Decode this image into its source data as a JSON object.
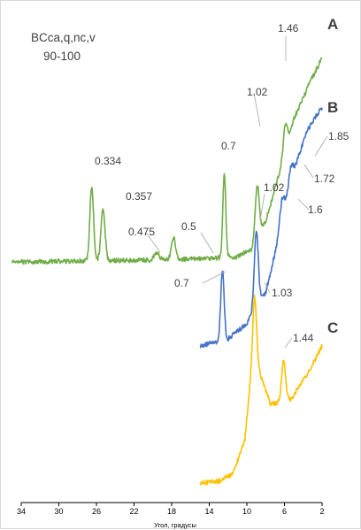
{
  "chart_data": {
    "type": "line",
    "title_lines": [
      "BCca,q,nc,v",
      "90-100"
    ],
    "xlabel": "Угол, градусы",
    "ylabel": "",
    "x_reversed": true,
    "xlim": [
      34,
      2
    ],
    "x_ticks": [
      "34",
      "30",
      "26",
      "22",
      "18",
      "14",
      "10",
      "6",
      "2"
    ],
    "grid": false,
    "colors": {
      "A": "#70ad47",
      "B": "#4472c4",
      "C": "#ffc000",
      "label_text": "#404040",
      "leader": "#a6a6a6",
      "axis": "#000000"
    },
    "series": [
      {
        "name": "A",
        "xrange": [
          35,
          2
        ],
        "baseline": 295,
        "noise": 2.6,
        "drift": [
          [
            35,
            0
          ],
          [
            20,
            -2
          ],
          [
            14,
            -4
          ],
          [
            11,
            -6
          ],
          [
            9.5,
            -14
          ],
          [
            8,
            -46
          ],
          [
            6.6,
            -98
          ],
          [
            5,
            -162
          ],
          [
            3.2,
            -205
          ],
          [
            2,
            -230
          ]
        ],
        "peaks": [
          {
            "x": 26.5,
            "h": 85,
            "w": 0.28
          },
          {
            "x": 25.3,
            "h": 58,
            "w": 0.3
          },
          {
            "x": 19.6,
            "h": 8,
            "w": 0.4
          },
          {
            "x": 17.8,
            "h": 25,
            "w": 0.3
          },
          {
            "x": 12.4,
            "h": 95,
            "w": 0.22
          },
          {
            "x": 8.9,
            "h": 60,
            "w": 0.3
          },
          {
            "x": 5.9,
            "h": 30,
            "w": 0.3
          }
        ]
      },
      {
        "name": "B",
        "xrange": [
          15,
          2
        ],
        "baseline": 390,
        "noise": 2.6,
        "drift": [
          [
            15,
            0
          ],
          [
            13.5,
            -4
          ],
          [
            12,
            -8
          ],
          [
            10,
            -25
          ],
          [
            9,
            -45
          ],
          [
            8,
            -60
          ],
          [
            7,
            -105
          ],
          [
            6,
            -160
          ],
          [
            4.5,
            -215
          ],
          [
            3.5,
            -245
          ],
          [
            2,
            -270
          ]
        ],
        "peaks": [
          {
            "x": 12.6,
            "h": 80,
            "w": 0.25
          },
          {
            "x": 9.0,
            "h": 85,
            "w": 0.3
          },
          {
            "x": 6.3,
            "h": 20,
            "w": 0.3
          },
          {
            "x": 5.3,
            "h": 18,
            "w": 0.3
          }
        ]
      },
      {
        "name": "C",
        "xrange": [
          15,
          2
        ],
        "baseline": 545,
        "noise": 2.6,
        "drift": [
          [
            15,
            0
          ],
          [
            13,
            -2
          ],
          [
            11.5,
            -10
          ],
          [
            10.2,
            -50
          ],
          [
            9.6,
            -120
          ],
          [
            9.0,
            -150
          ],
          [
            8.5,
            -120
          ],
          [
            7.5,
            -90
          ],
          [
            6.8,
            -90
          ],
          [
            5.3,
            -95
          ],
          [
            3.5,
            -125
          ],
          [
            2,
            -155
          ]
        ],
        "peaks": [
          {
            "x": 9.2,
            "h": 70,
            "w": 0.25
          },
          {
            "x": 6.1,
            "h": 45,
            "w": 0.3
          }
        ]
      }
    ],
    "annotations": [
      {
        "curve": "A",
        "text": "0.334",
        "d_spacing": 0.334
      },
      {
        "curve": "A",
        "text": "0.357",
        "d_spacing": 0.357
      },
      {
        "curve": "A",
        "text": "0.475",
        "d_spacing": 0.475
      },
      {
        "curve": "A",
        "text": "0.5",
        "d_spacing": 0.5
      },
      {
        "curve": "A",
        "text": "0.7",
        "d_spacing": 0.7
      },
      {
        "curve": "A",
        "text": "1.02",
        "d_spacing": 1.02
      },
      {
        "curve": "A",
        "text": "1.46",
        "d_spacing": 1.46
      },
      {
        "curve": "B",
        "text": "0.7",
        "d_spacing": 0.7
      },
      {
        "curve": "B",
        "text": "1.02",
        "d_spacing": 1.02
      },
      {
        "curve": "B",
        "text": "1.03",
        "d_spacing": 1.03
      },
      {
        "curve": "B",
        "text": "1.6",
        "d_spacing": 1.6
      },
      {
        "curve": "B",
        "text": "1.72",
        "d_spacing": 1.72
      },
      {
        "curve": "B",
        "text": "1.85",
        "d_spacing": 1.85
      },
      {
        "curve": "C",
        "text": "1.44",
        "d_spacing": 1.44
      }
    ]
  }
}
